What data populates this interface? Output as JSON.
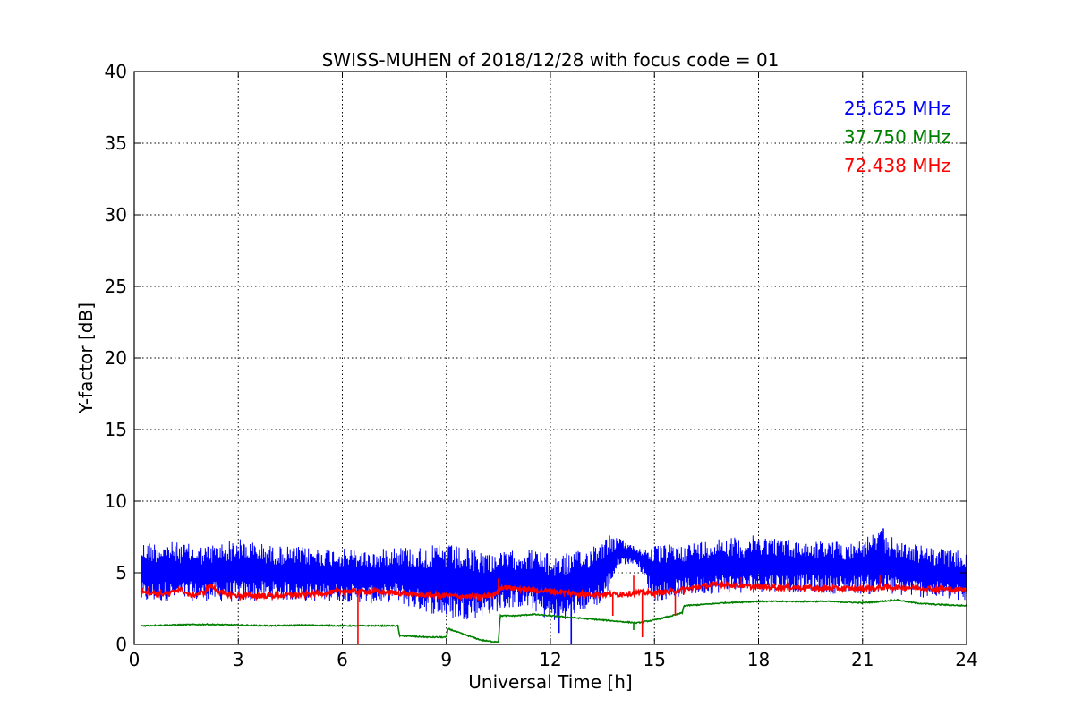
{
  "chart_data": {
    "type": "line",
    "title": "SWISS-MUHEN of 2018/12/28 with focus code = 01",
    "xlabel": "Universal Time [h]",
    "ylabel": "Y-factor [dB]",
    "xlim": [
      0,
      24
    ],
    "ylim": [
      0,
      40
    ],
    "xticks": [
      0,
      3,
      6,
      9,
      12,
      15,
      18,
      21,
      24
    ],
    "yticks": [
      0,
      5,
      10,
      15,
      20,
      25,
      30,
      35,
      40
    ],
    "grid": true,
    "legend_position": "top-right",
    "series": [
      {
        "name": "25.625 MHz",
        "color": "#0000ff",
        "style": "band",
        "x": [
          0.2,
          1,
          2,
          3,
          4,
          5,
          6,
          7,
          7.5,
          8,
          8.5,
          9,
          9.5,
          10,
          10.5,
          11,
          11.5,
          12,
          12.5,
          13,
          13.5,
          14,
          14.5,
          15,
          15.5,
          16,
          16.5,
          17,
          17.5,
          18,
          18.5,
          19,
          19.5,
          20,
          20.5,
          21,
          21.5,
          22,
          22.5,
          23,
          23.5,
          24
        ],
        "low": [
          2.8,
          3.0,
          3.0,
          2.9,
          3.1,
          3.0,
          3.0,
          2.8,
          3.0,
          2.5,
          2.2,
          1.8,
          1.7,
          1.9,
          2.3,
          2.6,
          2.4,
          1.5,
          1.8,
          2.4,
          2.8,
          5.6,
          5.6,
          3.0,
          3.2,
          3.4,
          3.5,
          3.6,
          3.5,
          3.6,
          3.7,
          3.6,
          3.7,
          3.5,
          3.6,
          3.5,
          3.4,
          3.4,
          3.3,
          3.2,
          3.1,
          2.8
        ],
        "high": [
          7.2,
          7.2,
          6.9,
          7.4,
          6.9,
          6.8,
          6.7,
          6.5,
          7.0,
          6.8,
          6.9,
          7.0,
          6.8,
          6.6,
          6.4,
          6.6,
          6.7,
          6.3,
          6.4,
          6.6,
          7.6,
          7.4,
          6.8,
          6.9,
          7.0,
          7.1,
          7.3,
          7.6,
          7.4,
          7.7,
          7.5,
          7.3,
          7.2,
          7.3,
          7.1,
          7.4,
          8.0,
          7.3,
          7.0,
          6.8,
          6.6,
          6.5
        ],
        "spikes": [
          [
            12.25,
            0.8
          ],
          [
            12.6,
            0.0
          ],
          [
            13.7,
            7.6
          ],
          [
            21.6,
            8.1
          ]
        ]
      },
      {
        "name": "37.750 MHz",
        "color": "#008000",
        "style": "line",
        "x": [
          0.2,
          1,
          2,
          3,
          4,
          5,
          6,
          7,
          7.6,
          7.65,
          8.5,
          9,
          9.05,
          9.5,
          10,
          10.3,
          10.5,
          10.55,
          11,
          11.5,
          12,
          12.5,
          13,
          13.5,
          14,
          14.5,
          15,
          15.5,
          15.8,
          15.85,
          16.5,
          17,
          18,
          19,
          20,
          21,
          21.5,
          22,
          22.5,
          23,
          24
        ],
        "y": [
          1.3,
          1.35,
          1.4,
          1.35,
          1.3,
          1.35,
          1.3,
          1.3,
          1.3,
          0.6,
          0.5,
          0.5,
          1.1,
          0.7,
          0.3,
          0.2,
          0.2,
          2.0,
          2.0,
          2.1,
          2.0,
          1.9,
          1.8,
          1.7,
          1.6,
          1.5,
          1.7,
          2.0,
          2.2,
          2.7,
          2.8,
          2.9,
          3.0,
          3.0,
          3.0,
          2.9,
          3.0,
          3.1,
          2.9,
          2.8,
          2.7
        ],
        "spikes": [
          [
            14.4,
            1.0
          ]
        ]
      },
      {
        "name": "72.438 MHz",
        "color": "#ff0000",
        "style": "line",
        "x": [
          0.2,
          0.5,
          1,
          1.3,
          1.6,
          2,
          2.2,
          2.5,
          3,
          4,
          5,
          6,
          7,
          8,
          9,
          10,
          10.4,
          10.6,
          11,
          12,
          13,
          14,
          14.5,
          15,
          15.5,
          16,
          16.5,
          17,
          18,
          19,
          20,
          21,
          22,
          23,
          24
        ],
        "y": [
          3.8,
          3.6,
          3.5,
          3.9,
          3.4,
          3.6,
          4.1,
          3.6,
          3.4,
          3.4,
          3.5,
          3.7,
          3.7,
          3.5,
          3.4,
          3.3,
          3.5,
          4.0,
          3.9,
          3.7,
          3.5,
          3.5,
          3.6,
          3.6,
          3.7,
          3.9,
          4.1,
          4.2,
          4.0,
          4.0,
          3.9,
          3.9,
          4.0,
          3.9,
          3.8
        ],
        "spikes": [
          [
            6.45,
            0.0
          ],
          [
            10.5,
            4.6
          ],
          [
            13.8,
            2.0
          ],
          [
            14.4,
            4.8
          ],
          [
            14.65,
            0.5
          ],
          [
            15.6,
            2.0
          ],
          [
            17.5,
            4.7
          ],
          [
            21.5,
            4.8
          ]
        ]
      }
    ]
  }
}
